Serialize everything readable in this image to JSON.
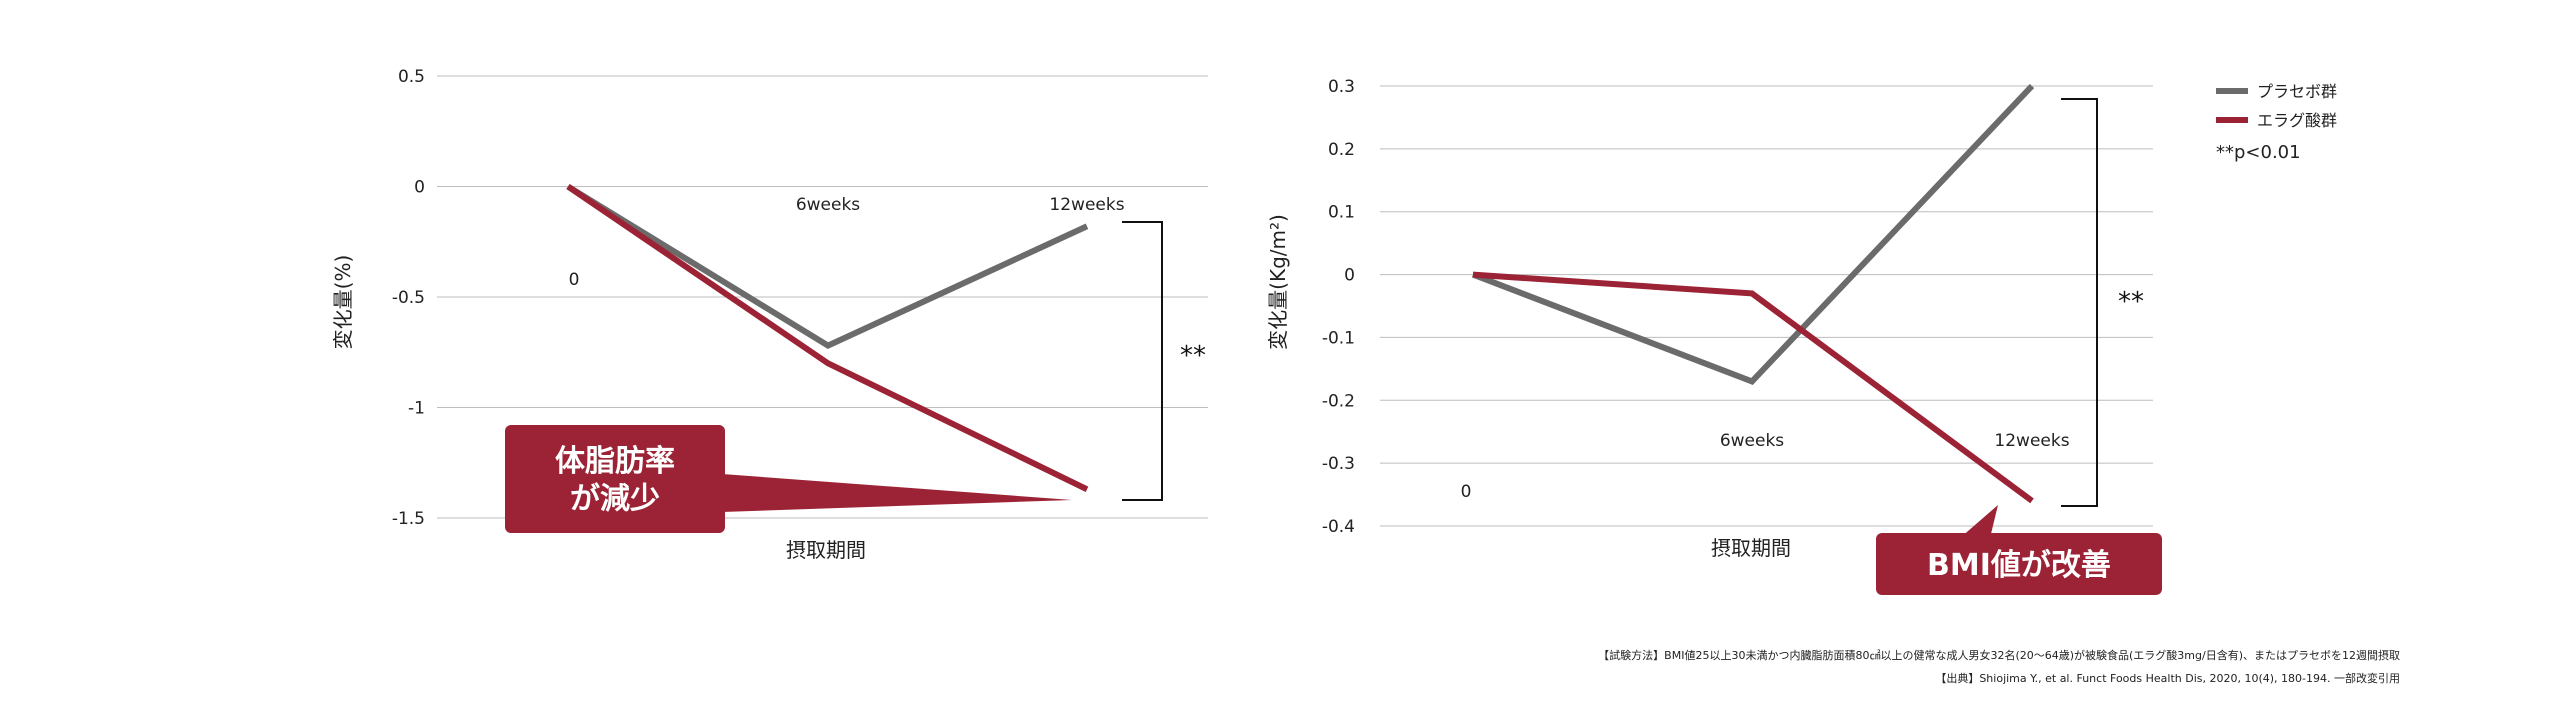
{
  "chart_data": [
    {
      "type": "line",
      "ylabel": "変化量(%)",
      "xlabel": "摂取期間",
      "ylim": [
        -1.5,
        0.5
      ],
      "yticks": [
        "0.5",
        "0",
        "-0.5",
        "-1",
        "-1.5"
      ],
      "ytick_values": [
        0.5,
        0,
        -0.5,
        -1,
        -1.5
      ],
      "x": [
        "0",
        "6weeks",
        "12weeks"
      ],
      "series": [
        {
          "name": "プラセボ群",
          "color": "#6b6b6b",
          "values": [
            0,
            -0.72,
            -0.18
          ]
        },
        {
          "name": "エラグ酸群",
          "color": "#9b2335",
          "values": [
            0,
            -0.8,
            -1.37
          ]
        }
      ],
      "significance": "**",
      "callout": {
        "lines": [
          "体脂肪率",
          "が減少"
        ],
        "color": "#9b2335"
      }
    },
    {
      "type": "line",
      "ylabel": "変化量(Kg/m²)",
      "xlabel": "摂取期間",
      "ylim": [
        -0.4,
        0.3
      ],
      "yticks": [
        "0.3",
        "0.2",
        "0.1",
        "0",
        "-0.1",
        "-0.2",
        "-0.3",
        "-0.4"
      ],
      "ytick_values": [
        0.3,
        0.2,
        0.1,
        0,
        -0.1,
        -0.2,
        -0.3,
        -0.4
      ],
      "x": [
        "0",
        "6weeks",
        "12weeks"
      ],
      "series": [
        {
          "name": "プラセボ群",
          "color": "#6b6b6b",
          "values": [
            0,
            -0.17,
            0.3
          ]
        },
        {
          "name": "エラグ酸群",
          "color": "#9b2335",
          "values": [
            0,
            -0.03,
            -0.36
          ]
        }
      ],
      "significance": "**",
      "legend": {
        "placement": "top-right",
        "note": "**p<0.01"
      },
      "callout": {
        "lines": [
          "BMI値が改善"
        ],
        "color": "#9b2335"
      }
    }
  ],
  "footnotes": {
    "method": "【試験方法】BMI値25以上30未満かつ内臓脂肪面積80㎠以上の健常な成人男女32名(20〜64歳)が被験食品(エラグ酸3mg/日含有)、またはプラセボを12週間摂取",
    "source": "【出典】Shiojima Y., et al. Funct Foods Health Dis, 2020, 10(4), 180-194. 一部改変引用"
  }
}
